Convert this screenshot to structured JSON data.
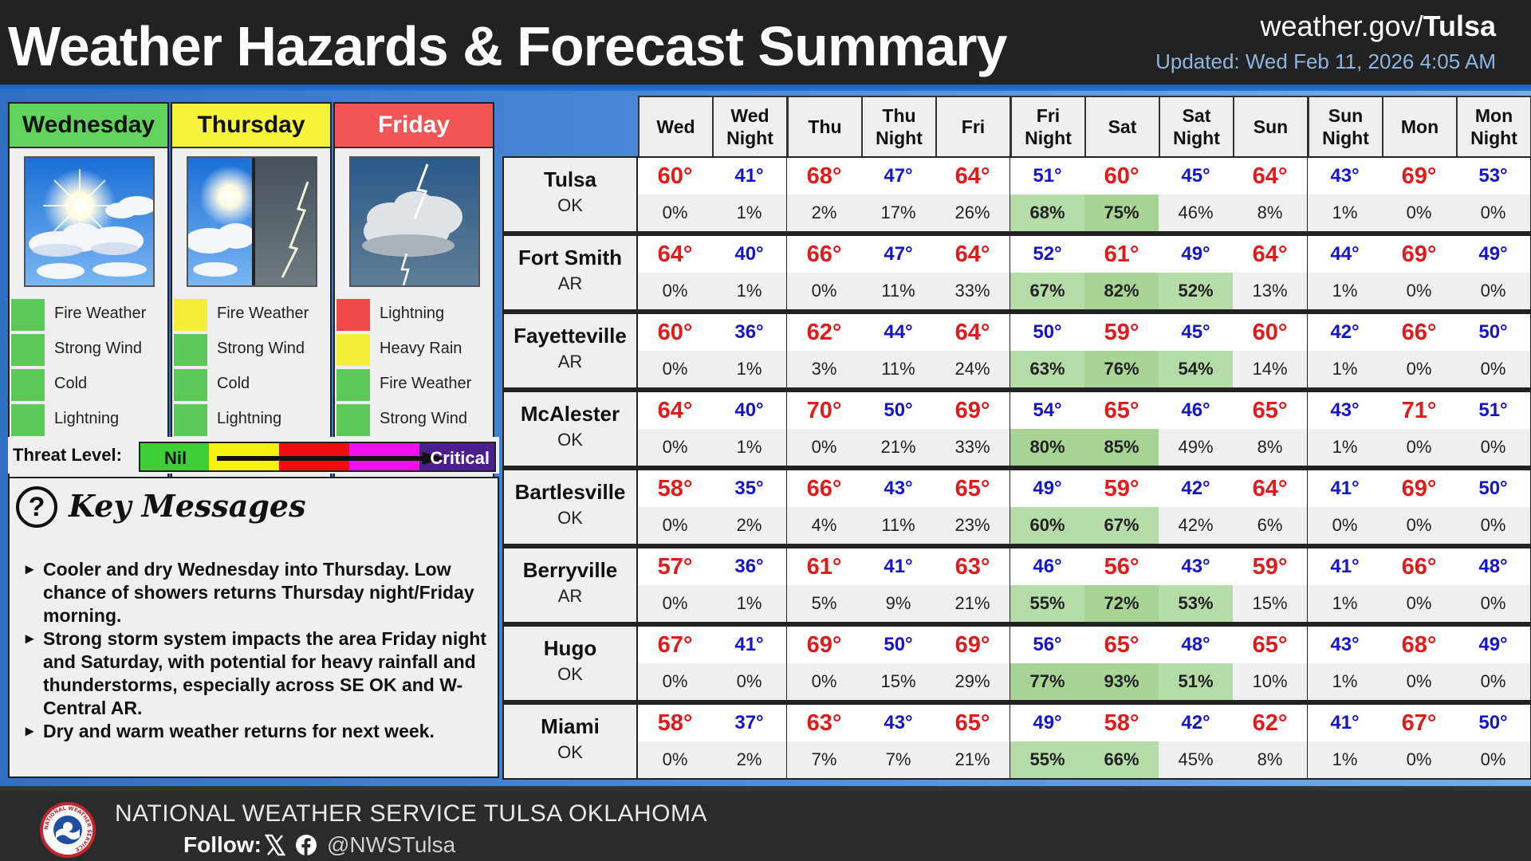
{
  "header": {
    "title": "Weather Hazards & Forecast Summary",
    "site_prefix": "weather.gov/",
    "site_office": "Tulsa",
    "updated": "Updated: Wed Feb 11, 2026 4:05 AM"
  },
  "days": [
    {
      "name": "Wednesday",
      "color": "#5fd35a",
      "image": "sun-clouds-icon",
      "hazards": [
        {
          "label": "Fire Weather",
          "color": "#5cc85a"
        },
        {
          "label": "Strong Wind",
          "color": "#5cc85a"
        },
        {
          "label": "Cold",
          "color": "#5cc85a"
        },
        {
          "label": "Lightning",
          "color": "#5cc85a"
        }
      ]
    },
    {
      "name": "Thursday",
      "color": "#f6f33c",
      "image": "sun-then-storm-icon",
      "hazards": [
        {
          "label": "Fire Weather",
          "color": "#f2ee3a"
        },
        {
          "label": "Strong Wind",
          "color": "#5cc85a"
        },
        {
          "label": "Cold",
          "color": "#5cc85a"
        },
        {
          "label": "Lightning",
          "color": "#5cc85a"
        }
      ]
    },
    {
      "name": "Friday",
      "color": "#f25555",
      "image": "thunderstorm-icon",
      "hazards": [
        {
          "label": "Lightning",
          "color": "#ef4a4a"
        },
        {
          "label": "Heavy Rain",
          "color": "#f2ee3a"
        },
        {
          "label": "Fire Weather",
          "color": "#5cc85a"
        },
        {
          "label": "Strong Wind",
          "color": "#5cc85a"
        }
      ]
    }
  ],
  "threat": {
    "label": "Threat Level:",
    "min": "Nil",
    "max": "Critical",
    "colors": [
      "#3ccf3a",
      "#f7f20e",
      "#ee0e0e",
      "#ee10ee",
      "#4b1f8c"
    ]
  },
  "key_messages": {
    "title": "Key Messages",
    "icon": "question-circle-icon",
    "items": [
      "Cooler and dry Wednesday into Thursday. Low chance of showers returns Thursday night/Friday morning.",
      "Strong storm system impacts the area Friday night and Saturday, with potential for heavy rainfall and thunderstorms, especially across SE OK and W-Central AR.",
      "Dry and warm weather returns for next week."
    ]
  },
  "forecast": {
    "periods": [
      "Wed",
      "Wed Night",
      "Thu",
      "Thu Night",
      "Fri",
      "Fri Night",
      "Sat",
      "Sat Night",
      "Sun",
      "Sun Night",
      "Mon",
      "Mon Night"
    ],
    "cities": [
      {
        "name": "Tulsa",
        "state": "OK",
        "temps": [
          "60°",
          "41°",
          "68°",
          "47°",
          "64°",
          "51°",
          "60°",
          "45°",
          "64°",
          "43°",
          "69°",
          "53°"
        ],
        "pops": [
          "0%",
          "1%",
          "2%",
          "17%",
          "26%",
          "68%",
          "75%",
          "46%",
          "8%",
          "1%",
          "0%",
          "0%"
        ]
      },
      {
        "name": "Fort Smith",
        "state": "AR",
        "temps": [
          "64°",
          "40°",
          "66°",
          "47°",
          "64°",
          "52°",
          "61°",
          "49°",
          "64°",
          "44°",
          "69°",
          "49°"
        ],
        "pops": [
          "0%",
          "1%",
          "0%",
          "11%",
          "33%",
          "67%",
          "82%",
          "52%",
          "13%",
          "1%",
          "0%",
          "0%"
        ]
      },
      {
        "name": "Fayetteville",
        "state": "AR",
        "temps": [
          "60°",
          "36°",
          "62°",
          "44°",
          "64°",
          "50°",
          "59°",
          "45°",
          "60°",
          "42°",
          "66°",
          "50°"
        ],
        "pops": [
          "0%",
          "1%",
          "3%",
          "11%",
          "24%",
          "63%",
          "76%",
          "54%",
          "14%",
          "1%",
          "0%",
          "0%"
        ]
      },
      {
        "name": "McAlester",
        "state": "OK",
        "temps": [
          "64°",
          "40°",
          "70°",
          "50°",
          "69°",
          "54°",
          "65°",
          "46°",
          "65°",
          "43°",
          "71°",
          "51°"
        ],
        "pops": [
          "0%",
          "1%",
          "0%",
          "21%",
          "33%",
          "80%",
          "85%",
          "49%",
          "8%",
          "1%",
          "0%",
          "0%"
        ]
      },
      {
        "name": "Bartlesville",
        "state": "OK",
        "temps": [
          "58°",
          "35°",
          "66°",
          "43°",
          "65°",
          "49°",
          "59°",
          "42°",
          "64°",
          "41°",
          "69°",
          "50°"
        ],
        "pops": [
          "0%",
          "2%",
          "4%",
          "11%",
          "23%",
          "60%",
          "67%",
          "42%",
          "6%",
          "0%",
          "0%",
          "0%"
        ]
      },
      {
        "name": "Berryville",
        "state": "AR",
        "temps": [
          "57°",
          "36°",
          "61°",
          "41°",
          "63°",
          "46°",
          "56°",
          "43°",
          "59°",
          "41°",
          "66°",
          "48°"
        ],
        "pops": [
          "0%",
          "1%",
          "5%",
          "9%",
          "21%",
          "55%",
          "72%",
          "53%",
          "15%",
          "1%",
          "0%",
          "0%"
        ]
      },
      {
        "name": "Hugo",
        "state": "OK",
        "temps": [
          "67°",
          "41°",
          "69°",
          "50°",
          "69°",
          "56°",
          "65°",
          "48°",
          "65°",
          "43°",
          "68°",
          "49°"
        ],
        "pops": [
          "0%",
          "0%",
          "0%",
          "15%",
          "29%",
          "77%",
          "93%",
          "51%",
          "10%",
          "1%",
          "0%",
          "0%"
        ]
      },
      {
        "name": "Miami",
        "state": "OK",
        "temps": [
          "58°",
          "37°",
          "63°",
          "43°",
          "65°",
          "49°",
          "58°",
          "42°",
          "62°",
          "41°",
          "67°",
          "50°"
        ],
        "pops": [
          "0%",
          "2%",
          "7%",
          "7%",
          "21%",
          "55%",
          "66%",
          "45%",
          "8%",
          "1%",
          "0%",
          "0%"
        ]
      }
    ],
    "hi_color": "#e01b1b",
    "lo_color": "#1515c8",
    "pop_highlight_color": "#b5dba6"
  },
  "footer": {
    "org": "NATIONAL WEATHER SERVICE TULSA OKLAHOMA",
    "follow_label": "Follow:",
    "icons": [
      "x-icon",
      "facebook-icon"
    ],
    "handle": "@NWSTulsa",
    "logo": "nws-logo-icon",
    "logo_ring_text": "NATIONAL WEATHER SERVICE"
  }
}
